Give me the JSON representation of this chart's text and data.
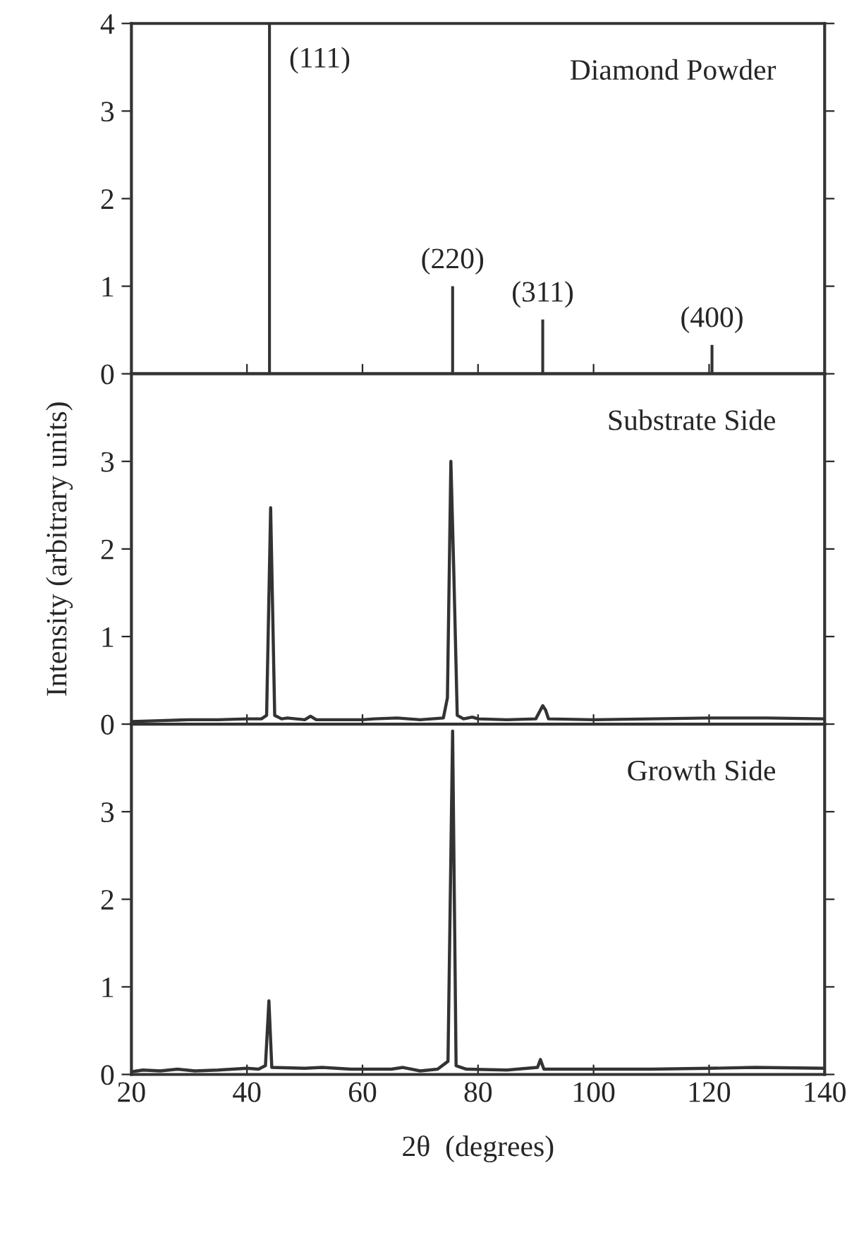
{
  "chart_data": [
    {
      "type": "bar",
      "title": "Diamond Powder",
      "x": [
        43.9,
        75.6,
        91.2,
        120.5
      ],
      "values": [
        4,
        1.0,
        0.62,
        0.33
      ],
      "color": "#333333",
      "annotations": [
        {
          "text": "(111)",
          "x": 43.9,
          "y": 4
        },
        {
          "text": "(220)",
          "x": 75.6,
          "y": 1.0
        },
        {
          "text": "(311)",
          "x": 91.2,
          "y": 0.62
        },
        {
          "text": "(400)",
          "x": 120.5,
          "y": 0.33
        }
      ],
      "xlim": [
        20,
        140
      ],
      "xticks": [
        20,
        40,
        60,
        80,
        100,
        120,
        140
      ],
      "ylim": [
        0,
        4
      ],
      "yticks": [
        0,
        1,
        2,
        3,
        4
      ],
      "tick_labels": "y"
    },
    {
      "type": "line",
      "title": "Substrate Side",
      "ylabel": "Intensity (arbitrary units)",
      "color": "#333333",
      "x": [
        20,
        25,
        30,
        35,
        40,
        42.5,
        43.4,
        44.1,
        44.8,
        46,
        47,
        50,
        51,
        52,
        60,
        62,
        66,
        70,
        74,
        74.7,
        75.3,
        75.8,
        76.4,
        77.5,
        79,
        80,
        85,
        90,
        91.2,
        91.7,
        92.2,
        100,
        110,
        120,
        130,
        140
      ],
      "values": [
        0.03,
        0.04,
        0.05,
        0.05,
        0.06,
        0.06,
        0.1,
        2.47,
        0.1,
        0.06,
        0.07,
        0.05,
        0.09,
        0.05,
        0.05,
        0.06,
        0.07,
        0.05,
        0.07,
        0.3,
        3.0,
        1.75,
        0.1,
        0.06,
        0.08,
        0.06,
        0.05,
        0.06,
        0.21,
        0.16,
        0.06,
        0.05,
        0.06,
        0.07,
        0.07,
        0.06
      ],
      "xlim": [
        20,
        140
      ],
      "xticks": [
        20,
        40,
        60,
        80,
        100,
        120,
        140
      ],
      "ylim": [
        0,
        4
      ],
      "yticks": [
        0,
        1,
        2,
        3
      ],
      "tick_labels": "y"
    },
    {
      "type": "line",
      "title": "Growth Side",
      "xlabel": "2θ  (degrees)",
      "color": "#333333",
      "x": [
        20,
        22,
        25,
        28,
        31,
        35,
        40,
        42,
        43.2,
        43.8,
        44.3,
        50,
        53,
        58,
        65,
        67,
        70,
        73,
        74.8,
        75.6,
        76.2,
        78,
        85,
        90.3,
        90.8,
        91.4,
        100,
        110,
        120,
        128,
        140
      ],
      "values": [
        0.03,
        0.05,
        0.04,
        0.06,
        0.04,
        0.05,
        0.07,
        0.06,
        0.1,
        0.84,
        0.08,
        0.07,
        0.08,
        0.06,
        0.06,
        0.08,
        0.04,
        0.06,
        0.15,
        3.92,
        0.1,
        0.06,
        0.05,
        0.08,
        0.17,
        0.06,
        0.06,
        0.06,
        0.07,
        0.08,
        0.07
      ],
      "xlim": [
        20,
        140
      ],
      "xticks": [
        20,
        40,
        60,
        80,
        100,
        120,
        140
      ],
      "ylim": [
        0,
        4
      ],
      "yticks": [
        0,
        1,
        2,
        3
      ]
    }
  ]
}
